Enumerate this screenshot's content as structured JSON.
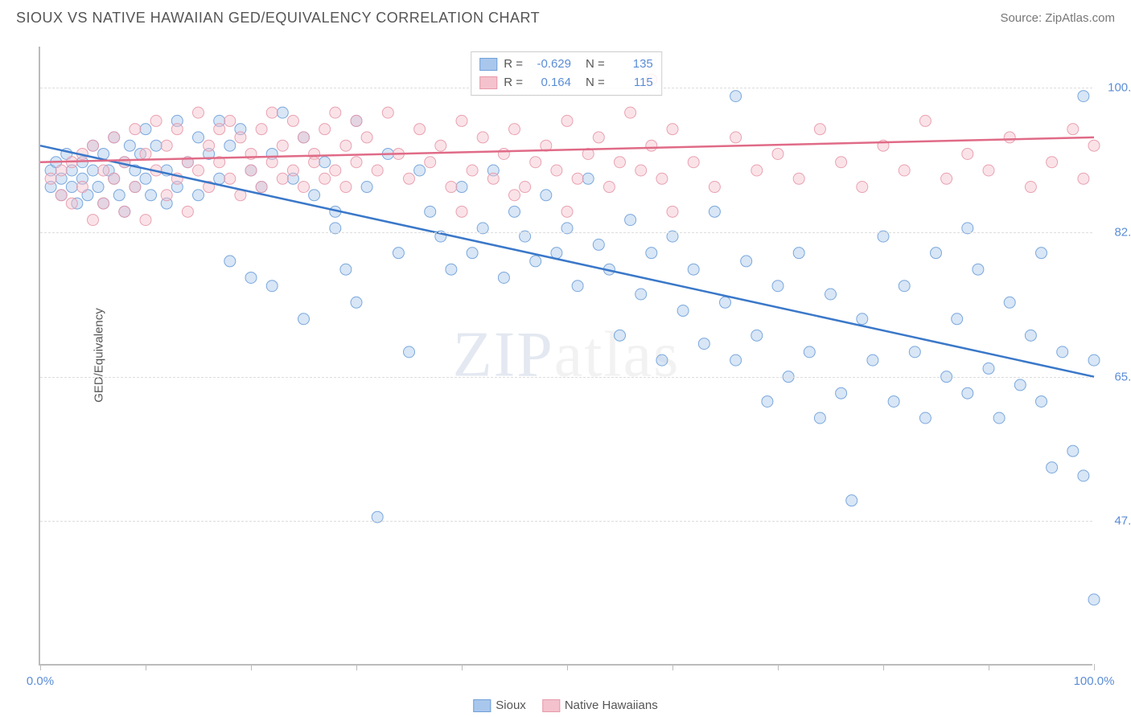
{
  "header": {
    "title": "SIOUX VS NATIVE HAWAIIAN GED/EQUIVALENCY CORRELATION CHART",
    "source": "Source: ZipAtlas.com"
  },
  "chart": {
    "type": "scatter",
    "y_label": "GED/Equivalency",
    "watermark": "ZIPatlas",
    "background_color": "#ffffff",
    "grid_color": "#dddddd",
    "axis_color": "#bbbbbb",
    "tick_label_color": "#5b8dd6",
    "label_color": "#555555",
    "title_fontsize": 18,
    "label_fontsize": 15,
    "tick_fontsize": 15,
    "xlim": [
      0,
      100
    ],
    "ylim": [
      30,
      105
    ],
    "x_ticks": [
      0,
      10,
      20,
      30,
      40,
      50,
      60,
      70,
      80,
      90,
      100
    ],
    "x_tick_labels": {
      "0": "0.0%",
      "100": "100.0%"
    },
    "y_gridlines": [
      47.5,
      65.0,
      82.5,
      100.0
    ],
    "y_tick_labels": {
      "47.5": "47.5%",
      "65.0": "65.0%",
      "82.5": "82.5%",
      "100.0": "100.0%"
    },
    "marker_radius": 7,
    "marker_opacity": 0.45,
    "marker_stroke_opacity": 0.9,
    "line_width": 2.5,
    "series": [
      {
        "name": "Sioux",
        "fill_color": "#a9c7ec",
        "stroke_color": "#6fa0d9",
        "line_color": "#3a78c9",
        "R": "-0.629",
        "N": "135",
        "trend": {
          "x1": 0,
          "y1": 93,
          "x2": 100,
          "y2": 65
        },
        "points": [
          [
            1,
            90
          ],
          [
            1,
            88
          ],
          [
            1.5,
            91
          ],
          [
            2,
            89
          ],
          [
            2,
            87
          ],
          [
            2.5,
            92
          ],
          [
            3,
            90
          ],
          [
            3,
            88
          ],
          [
            3.5,
            86
          ],
          [
            4,
            91
          ],
          [
            4,
            89
          ],
          [
            4.5,
            87
          ],
          [
            5,
            93
          ],
          [
            5,
            90
          ],
          [
            5.5,
            88
          ],
          [
            6,
            92
          ],
          [
            6,
            86
          ],
          [
            6.5,
            90
          ],
          [
            7,
            94
          ],
          [
            7,
            89
          ],
          [
            7.5,
            87
          ],
          [
            8,
            91
          ],
          [
            8,
            85
          ],
          [
            8.5,
            93
          ],
          [
            9,
            90
          ],
          [
            9,
            88
          ],
          [
            9.5,
            92
          ],
          [
            10,
            95
          ],
          [
            10,
            89
          ],
          [
            10.5,
            87
          ],
          [
            11,
            93
          ],
          [
            12,
            90
          ],
          [
            12,
            86
          ],
          [
            13,
            96
          ],
          [
            13,
            88
          ],
          [
            14,
            91
          ],
          [
            15,
            94
          ],
          [
            15,
            87
          ],
          [
            16,
            92
          ],
          [
            17,
            96
          ],
          [
            17,
            89
          ],
          [
            18,
            93
          ],
          [
            18,
            79
          ],
          [
            19,
            95
          ],
          [
            20,
            90
          ],
          [
            20,
            77
          ],
          [
            21,
            88
          ],
          [
            22,
            92
          ],
          [
            22,
            76
          ],
          [
            23,
            97
          ],
          [
            24,
            89
          ],
          [
            25,
            94
          ],
          [
            25,
            72
          ],
          [
            26,
            87
          ],
          [
            27,
            91
          ],
          [
            28,
            85
          ],
          [
            28,
            83
          ],
          [
            29,
            78
          ],
          [
            30,
            96
          ],
          [
            30,
            74
          ],
          [
            31,
            88
          ],
          [
            32,
            48
          ],
          [
            33,
            92
          ],
          [
            34,
            80
          ],
          [
            35,
            68
          ],
          [
            36,
            90
          ],
          [
            37,
            85
          ],
          [
            38,
            82
          ],
          [
            39,
            78
          ],
          [
            40,
            88
          ],
          [
            41,
            80
          ],
          [
            42,
            83
          ],
          [
            43,
            90
          ],
          [
            44,
            77
          ],
          [
            45,
            85
          ],
          [
            46,
            82
          ],
          [
            47,
            79
          ],
          [
            48,
            87
          ],
          [
            49,
            80
          ],
          [
            50,
            83
          ],
          [
            51,
            76
          ],
          [
            52,
            89
          ],
          [
            53,
            81
          ],
          [
            54,
            78
          ],
          [
            55,
            70
          ],
          [
            56,
            84
          ],
          [
            57,
            75
          ],
          [
            58,
            80
          ],
          [
            59,
            67
          ],
          [
            60,
            82
          ],
          [
            61,
            73
          ],
          [
            62,
            78
          ],
          [
            63,
            69
          ],
          [
            64,
            85
          ],
          [
            65,
            74
          ],
          [
            66,
            99
          ],
          [
            66,
            67
          ],
          [
            67,
            79
          ],
          [
            68,
            70
          ],
          [
            69,
            62
          ],
          [
            70,
            76
          ],
          [
            71,
            65
          ],
          [
            72,
            80
          ],
          [
            73,
            68
          ],
          [
            74,
            60
          ],
          [
            75,
            75
          ],
          [
            76,
            63
          ],
          [
            77,
            50
          ],
          [
            78,
            72
          ],
          [
            79,
            67
          ],
          [
            80,
            82
          ],
          [
            81,
            62
          ],
          [
            82,
            76
          ],
          [
            83,
            68
          ],
          [
            84,
            60
          ],
          [
            85,
            80
          ],
          [
            86,
            65
          ],
          [
            87,
            72
          ],
          [
            88,
            63
          ],
          [
            89,
            78
          ],
          [
            90,
            66
          ],
          [
            91,
            60
          ],
          [
            92,
            74
          ],
          [
            93,
            64
          ],
          [
            94,
            70
          ],
          [
            95,
            62
          ],
          [
            96,
            54
          ],
          [
            97,
            68
          ],
          [
            98,
            56
          ],
          [
            99,
            99
          ],
          [
            99,
            53
          ],
          [
            100,
            67
          ],
          [
            100,
            38
          ],
          [
            95,
            80
          ],
          [
            88,
            83
          ]
        ]
      },
      {
        "name": "Native Hawaiians",
        "fill_color": "#f4c2cd",
        "stroke_color": "#e799ab",
        "line_color": "#e06b87",
        "R": "0.164",
        "N": "115",
        "trend": {
          "x1": 0,
          "y1": 91,
          "x2": 100,
          "y2": 94
        },
        "points": [
          [
            1,
            89
          ],
          [
            2,
            90
          ],
          [
            2,
            87
          ],
          [
            3,
            91
          ],
          [
            3,
            86
          ],
          [
            4,
            92
          ],
          [
            4,
            88
          ],
          [
            5,
            93
          ],
          [
            5,
            84
          ],
          [
            6,
            90
          ],
          [
            6,
            86
          ],
          [
            7,
            94
          ],
          [
            7,
            89
          ],
          [
            8,
            91
          ],
          [
            8,
            85
          ],
          [
            9,
            95
          ],
          [
            9,
            88
          ],
          [
            10,
            92
          ],
          [
            10,
            84
          ],
          [
            11,
            96
          ],
          [
            11,
            90
          ],
          [
            12,
            93
          ],
          [
            12,
            87
          ],
          [
            13,
            95
          ],
          [
            13,
            89
          ],
          [
            14,
            91
          ],
          [
            14,
            85
          ],
          [
            15,
            97
          ],
          [
            15,
            90
          ],
          [
            16,
            93
          ],
          [
            16,
            88
          ],
          [
            17,
            95
          ],
          [
            17,
            91
          ],
          [
            18,
            96
          ],
          [
            18,
            89
          ],
          [
            19,
            94
          ],
          [
            19,
            87
          ],
          [
            20,
            92
          ],
          [
            20,
            90
          ],
          [
            21,
            95
          ],
          [
            21,
            88
          ],
          [
            22,
            97
          ],
          [
            22,
            91
          ],
          [
            23,
            93
          ],
          [
            23,
            89
          ],
          [
            24,
            96
          ],
          [
            24,
            90
          ],
          [
            25,
            94
          ],
          [
            25,
            88
          ],
          [
            26,
            92
          ],
          [
            26,
            91
          ],
          [
            27,
            95
          ],
          [
            27,
            89
          ],
          [
            28,
            97
          ],
          [
            28,
            90
          ],
          [
            29,
            93
          ],
          [
            29,
            88
          ],
          [
            30,
            96
          ],
          [
            30,
            91
          ],
          [
            31,
            94
          ],
          [
            32,
            90
          ],
          [
            33,
            97
          ],
          [
            34,
            92
          ],
          [
            35,
            89
          ],
          [
            36,
            95
          ],
          [
            37,
            91
          ],
          [
            38,
            93
          ],
          [
            39,
            88
          ],
          [
            40,
            96
          ],
          [
            41,
            90
          ],
          [
            42,
            94
          ],
          [
            43,
            89
          ],
          [
            44,
            92
          ],
          [
            45,
            95
          ],
          [
            46,
            88
          ],
          [
            47,
            91
          ],
          [
            48,
            93
          ],
          [
            49,
            90
          ],
          [
            50,
            96
          ],
          [
            51,
            89
          ],
          [
            52,
            92
          ],
          [
            53,
            94
          ],
          [
            54,
            88
          ],
          [
            55,
            91
          ],
          [
            56,
            97
          ],
          [
            57,
            90
          ],
          [
            58,
            93
          ],
          [
            59,
            89
          ],
          [
            60,
            95
          ],
          [
            62,
            91
          ],
          [
            64,
            88
          ],
          [
            66,
            94
          ],
          [
            68,
            90
          ],
          [
            70,
            92
          ],
          [
            72,
            89
          ],
          [
            74,
            95
          ],
          [
            76,
            91
          ],
          [
            78,
            88
          ],
          [
            80,
            93
          ],
          [
            82,
            90
          ],
          [
            84,
            96
          ],
          [
            86,
            89
          ],
          [
            88,
            92
          ],
          [
            90,
            90
          ],
          [
            92,
            94
          ],
          [
            94,
            88
          ],
          [
            96,
            91
          ],
          [
            98,
            95
          ],
          [
            99,
            89
          ],
          [
            100,
            93
          ],
          [
            58,
            101
          ],
          [
            60,
            85
          ],
          [
            50,
            85
          ],
          [
            45,
            87
          ],
          [
            40,
            85
          ]
        ]
      }
    ],
    "legend_top": {
      "rows": [
        {
          "swatch_fill": "#a9c7ec",
          "swatch_stroke": "#6fa0d9",
          "R_label": "R =",
          "R_val": "-0.629",
          "N_label": "N =",
          "N_val": "135"
        },
        {
          "swatch_fill": "#f4c2cd",
          "swatch_stroke": "#e799ab",
          "R_label": "R =",
          "R_val": "0.164",
          "N_label": "N =",
          "N_val": "115"
        }
      ]
    },
    "legend_bottom": [
      {
        "swatch_fill": "#a9c7ec",
        "swatch_stroke": "#6fa0d9",
        "label": "Sioux"
      },
      {
        "swatch_fill": "#f4c2cd",
        "swatch_stroke": "#e799ab",
        "label": "Native Hawaiians"
      }
    ]
  }
}
